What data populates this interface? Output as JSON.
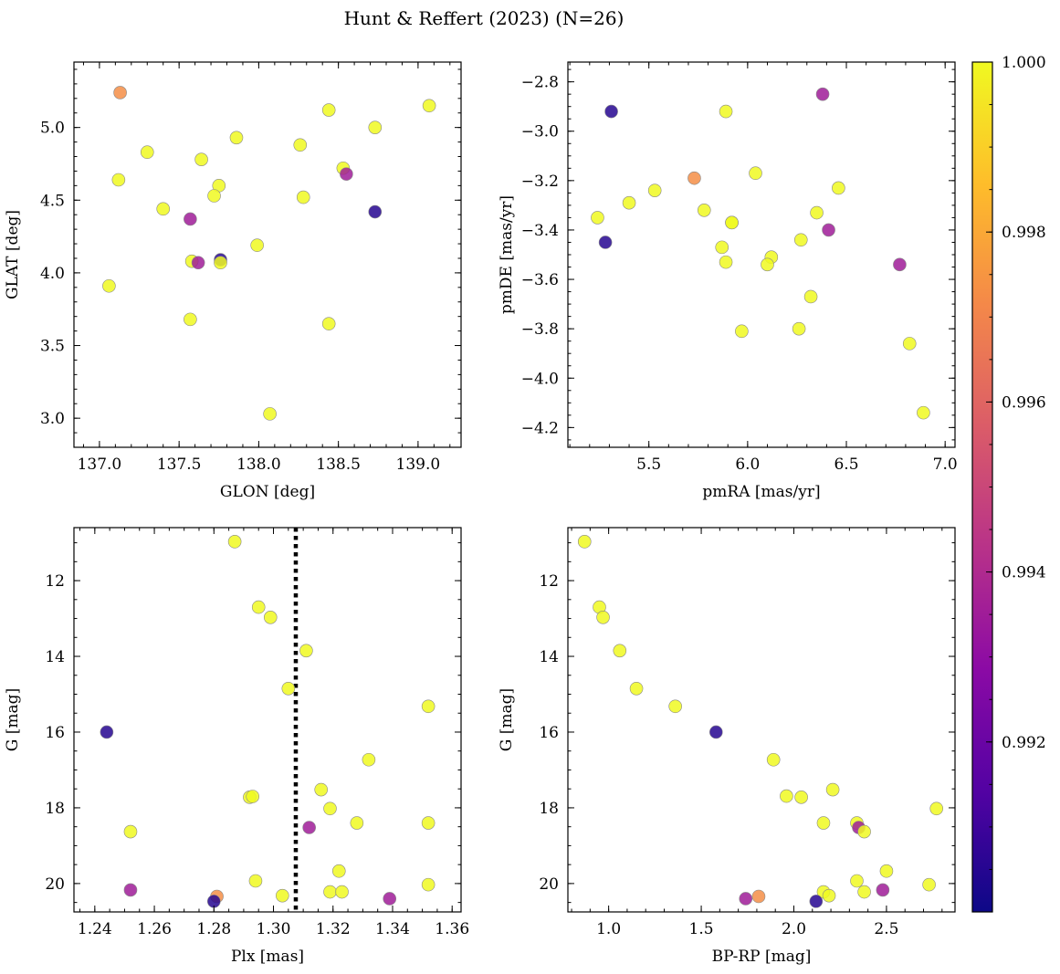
{
  "title": "Hunt & Reffert (2023) (N=26)",
  "colorbar": {
    "min": 0.99,
    "max": 1.0,
    "tick_values": [
      0.992,
      0.994,
      0.996,
      0.998,
      1.0
    ],
    "tick_labels": [
      "0.992",
      "0.994",
      "0.996",
      "0.998",
      "1.000"
    ],
    "colormap": [
      "#0d0887",
      "#5302a3",
      "#8b0aa5",
      "#b83289",
      "#db5c68",
      "#f48849",
      "#febd2a",
      "#f0f921"
    ]
  },
  "chart_data": [
    {
      "type": "scatter",
      "id": "glon-glat",
      "xlabel": "GLON [deg]",
      "ylabel": "GLAT [deg]",
      "xlim": [
        136.84,
        139.27
      ],
      "ylim": [
        2.8,
        5.45
      ],
      "invert_y": false,
      "xticks": [
        137.0,
        137.5,
        138.0,
        138.5,
        139.0
      ],
      "xtick_labels": [
        "137.0",
        "137.5",
        "138.0",
        "138.5",
        "139.0"
      ],
      "yticks": [
        3.0,
        3.5,
        4.0,
        4.5,
        5.0
      ],
      "ytick_labels": [
        "3.0",
        "3.5",
        "4.0",
        "4.5",
        "5.0"
      ],
      "points": [
        {
          "x": 137.13,
          "y": 5.24,
          "c": 0.9973
        },
        {
          "x": 139.07,
          "y": 5.15,
          "c": 1.0
        },
        {
          "x": 138.44,
          "y": 5.12,
          "c": 1.0
        },
        {
          "x": 138.73,
          "y": 5.0,
          "c": 1.0
        },
        {
          "x": 137.86,
          "y": 4.93,
          "c": 1.0
        },
        {
          "x": 138.26,
          "y": 4.88,
          "c": 1.0
        },
        {
          "x": 137.3,
          "y": 4.83,
          "c": 1.0
        },
        {
          "x": 137.64,
          "y": 4.78,
          "c": 1.0
        },
        {
          "x": 138.53,
          "y": 4.72,
          "c": 1.0
        },
        {
          "x": 138.55,
          "y": 4.68,
          "c": 0.9935
        },
        {
          "x": 137.12,
          "y": 4.64,
          "c": 1.0
        },
        {
          "x": 137.75,
          "y": 4.6,
          "c": 1.0
        },
        {
          "x": 137.72,
          "y": 4.53,
          "c": 1.0
        },
        {
          "x": 138.28,
          "y": 4.52,
          "c": 1.0
        },
        {
          "x": 137.4,
          "y": 4.44,
          "c": 1.0
        },
        {
          "x": 138.73,
          "y": 4.42,
          "c": 0.9905
        },
        {
          "x": 137.57,
          "y": 4.37,
          "c": 0.9935
        },
        {
          "x": 137.99,
          "y": 4.19,
          "c": 1.0
        },
        {
          "x": 137.76,
          "y": 4.09,
          "c": 0.9905
        },
        {
          "x": 137.58,
          "y": 4.08,
          "c": 1.0
        },
        {
          "x": 137.62,
          "y": 4.07,
          "c": 0.9935
        },
        {
          "x": 137.76,
          "y": 4.07,
          "c": 1.0
        },
        {
          "x": 137.06,
          "y": 3.91,
          "c": 1.0
        },
        {
          "x": 137.57,
          "y": 3.68,
          "c": 1.0
        },
        {
          "x": 138.44,
          "y": 3.65,
          "c": 1.0
        },
        {
          "x": 138.07,
          "y": 3.03,
          "c": 1.0
        }
      ]
    },
    {
      "type": "scatter",
      "id": "pmra-pmde",
      "xlabel": "pmRA [mas/yr]",
      "ylabel": "pmDE [mas/yr]",
      "xlim": [
        5.09,
        7.05
      ],
      "ylim": [
        -4.28,
        -2.72
      ],
      "invert_y": false,
      "xticks": [
        5.5,
        6.0,
        6.5,
        7.0
      ],
      "xtick_labels": [
        "5.5",
        "6.0",
        "6.5",
        "7.0"
      ],
      "yticks": [
        -4.2,
        -4.0,
        -3.8,
        -3.6,
        -3.4,
        -3.2,
        -3.0,
        -2.8
      ],
      "ytick_labels": [
        "−4.2",
        "−4.0",
        "−3.8",
        "−3.6",
        "−3.4",
        "−3.2",
        "−3.0",
        "−2.8"
      ],
      "points": [
        {
          "x": 6.38,
          "y": -2.85,
          "c": 0.9935
        },
        {
          "x": 5.31,
          "y": -2.92,
          "c": 0.9905
        },
        {
          "x": 5.89,
          "y": -2.92,
          "c": 1.0
        },
        {
          "x": 5.73,
          "y": -3.19,
          "c": 0.9973
        },
        {
          "x": 6.04,
          "y": -3.17,
          "c": 1.0
        },
        {
          "x": 6.46,
          "y": -3.23,
          "c": 1.0
        },
        {
          "x": 5.53,
          "y": -3.24,
          "c": 1.0
        },
        {
          "x": 5.4,
          "y": -3.29,
          "c": 1.0
        },
        {
          "x": 5.78,
          "y": -3.32,
          "c": 1.0
        },
        {
          "x": 6.35,
          "y": -3.33,
          "c": 1.0
        },
        {
          "x": 5.24,
          "y": -3.35,
          "c": 1.0
        },
        {
          "x": 5.92,
          "y": -3.37,
          "c": 1.0
        },
        {
          "x": 5.92,
          "y": -3.37,
          "c": 1.0
        },
        {
          "x": 6.41,
          "y": -3.4,
          "c": 0.9935
        },
        {
          "x": 6.27,
          "y": -3.44,
          "c": 1.0
        },
        {
          "x": 5.28,
          "y": -3.45,
          "c": 0.9905
        },
        {
          "x": 5.87,
          "y": -3.47,
          "c": 1.0
        },
        {
          "x": 6.12,
          "y": -3.51,
          "c": 1.0
        },
        {
          "x": 5.89,
          "y": -3.53,
          "c": 1.0
        },
        {
          "x": 6.77,
          "y": -3.54,
          "c": 0.9935
        },
        {
          "x": 6.1,
          "y": -3.54,
          "c": 1.0
        },
        {
          "x": 6.32,
          "y": -3.67,
          "c": 1.0
        },
        {
          "x": 6.26,
          "y": -3.8,
          "c": 1.0
        },
        {
          "x": 5.97,
          "y": -3.81,
          "c": 1.0
        },
        {
          "x": 6.82,
          "y": -3.86,
          "c": 1.0
        },
        {
          "x": 6.89,
          "y": -4.14,
          "c": 1.0
        }
      ]
    },
    {
      "type": "scatter",
      "id": "plx-g",
      "xlabel": "Plx [mas]",
      "ylabel": "G [mag]",
      "xlim": [
        1.233,
        1.363
      ],
      "ylim": [
        10.6,
        20.75
      ],
      "invert_y": true,
      "vline": 1.3075,
      "xticks": [
        1.24,
        1.26,
        1.28,
        1.3,
        1.32,
        1.34,
        1.36
      ],
      "xtick_labels": [
        "1.24",
        "1.26",
        "1.28",
        "1.30",
        "1.32",
        "1.34",
        "1.36"
      ],
      "yticks": [
        12,
        14,
        16,
        18,
        20
      ],
      "ytick_labels": [
        "12",
        "14",
        "16",
        "18",
        "20"
      ],
      "points": [
        {
          "x": 1.287,
          "y": 10.97,
          "c": 1.0
        },
        {
          "x": 1.295,
          "y": 12.7,
          "c": 1.0
        },
        {
          "x": 1.299,
          "y": 12.97,
          "c": 1.0
        },
        {
          "x": 1.311,
          "y": 13.85,
          "c": 1.0
        },
        {
          "x": 1.305,
          "y": 14.85,
          "c": 1.0
        },
        {
          "x": 1.352,
          "y": 15.32,
          "c": 1.0
        },
        {
          "x": 1.244,
          "y": 16.0,
          "c": 0.9905
        },
        {
          "x": 1.332,
          "y": 16.73,
          "c": 1.0
        },
        {
          "x": 1.316,
          "y": 17.52,
          "c": 1.0
        },
        {
          "x": 1.292,
          "y": 17.72,
          "c": 1.0
        },
        {
          "x": 1.293,
          "y": 17.7,
          "c": 1.0
        },
        {
          "x": 1.319,
          "y": 18.02,
          "c": 1.0
        },
        {
          "x": 1.328,
          "y": 18.4,
          "c": 1.0
        },
        {
          "x": 1.352,
          "y": 18.4,
          "c": 1.0
        },
        {
          "x": 1.312,
          "y": 18.52,
          "c": 0.9935
        },
        {
          "x": 1.252,
          "y": 18.63,
          "c": 1.0
        },
        {
          "x": 1.322,
          "y": 19.67,
          "c": 1.0
        },
        {
          "x": 1.294,
          "y": 19.93,
          "c": 1.0
        },
        {
          "x": 1.352,
          "y": 20.03,
          "c": 1.0
        },
        {
          "x": 1.252,
          "y": 20.17,
          "c": 0.9935
        },
        {
          "x": 1.319,
          "y": 20.22,
          "c": 1.0
        },
        {
          "x": 1.323,
          "y": 20.22,
          "c": 1.0
        },
        {
          "x": 1.303,
          "y": 20.32,
          "c": 1.0
        },
        {
          "x": 1.281,
          "y": 20.34,
          "c": 0.9973
        },
        {
          "x": 1.339,
          "y": 20.4,
          "c": 0.9935
        },
        {
          "x": 1.28,
          "y": 20.47,
          "c": 0.9905
        }
      ]
    },
    {
      "type": "scatter",
      "id": "bprp-g",
      "xlabel": "BP-RP [mag]",
      "ylabel": "G [mag]",
      "xlim": [
        0.78,
        2.87
      ],
      "ylim": [
        10.6,
        20.75
      ],
      "invert_y": true,
      "xticks": [
        1.0,
        1.5,
        2.0,
        2.5
      ],
      "xtick_labels": [
        "1.0",
        "1.5",
        "2.0",
        "2.5"
      ],
      "yticks": [
        12,
        14,
        16,
        18,
        20
      ],
      "ytick_labels": [
        "12",
        "14",
        "16",
        "18",
        "20"
      ],
      "points": [
        {
          "x": 0.87,
          "y": 10.97,
          "c": 1.0
        },
        {
          "x": 0.95,
          "y": 12.7,
          "c": 1.0
        },
        {
          "x": 0.97,
          "y": 12.97,
          "c": 1.0
        },
        {
          "x": 1.06,
          "y": 13.85,
          "c": 1.0
        },
        {
          "x": 1.15,
          "y": 14.85,
          "c": 1.0
        },
        {
          "x": 1.36,
          "y": 15.32,
          "c": 1.0
        },
        {
          "x": 1.58,
          "y": 16.0,
          "c": 0.9905
        },
        {
          "x": 1.89,
          "y": 16.73,
          "c": 1.0
        },
        {
          "x": 2.21,
          "y": 17.52,
          "c": 1.0
        },
        {
          "x": 1.96,
          "y": 17.69,
          "c": 1.0
        },
        {
          "x": 2.04,
          "y": 17.72,
          "c": 1.0
        },
        {
          "x": 2.77,
          "y": 18.02,
          "c": 1.0
        },
        {
          "x": 2.16,
          "y": 18.4,
          "c": 1.0
        },
        {
          "x": 2.34,
          "y": 18.4,
          "c": 1.0
        },
        {
          "x": 2.35,
          "y": 18.52,
          "c": 0.9935
        },
        {
          "x": 2.38,
          "y": 18.63,
          "c": 1.0
        },
        {
          "x": 2.5,
          "y": 19.67,
          "c": 1.0
        },
        {
          "x": 2.34,
          "y": 19.93,
          "c": 1.0
        },
        {
          "x": 2.73,
          "y": 20.03,
          "c": 1.0
        },
        {
          "x": 2.48,
          "y": 20.17,
          "c": 0.9935
        },
        {
          "x": 2.16,
          "y": 20.22,
          "c": 1.0
        },
        {
          "x": 2.38,
          "y": 20.22,
          "c": 1.0
        },
        {
          "x": 2.19,
          "y": 20.32,
          "c": 1.0
        },
        {
          "x": 1.81,
          "y": 20.34,
          "c": 0.9973
        },
        {
          "x": 1.74,
          "y": 20.4,
          "c": 0.9935
        },
        {
          "x": 2.12,
          "y": 20.47,
          "c": 0.9905
        }
      ]
    }
  ]
}
